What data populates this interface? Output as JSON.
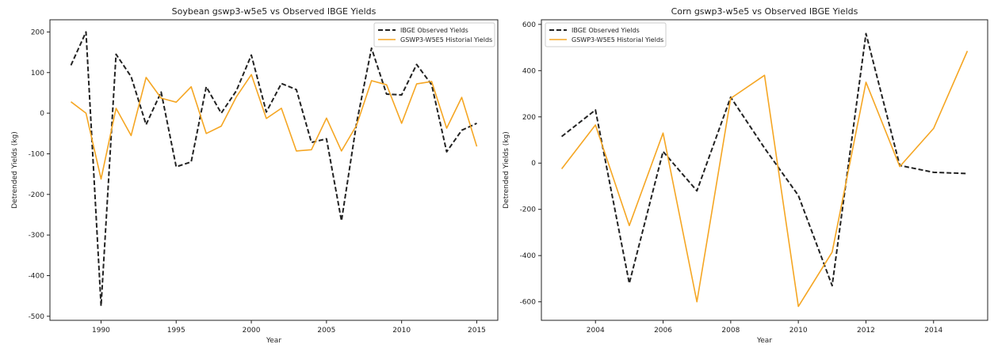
{
  "chart_data": [
    {
      "type": "line",
      "title": "Soybean gswp3-w5e5 vs Observed IBGE Yields",
      "xlabel": "Year",
      "ylabel": "Detrended Yields (kg)",
      "xlim": [
        1986.6,
        2016.4
      ],
      "ylim": [
        -510,
        230
      ],
      "xticks": [
        1990,
        1995,
        2000,
        2005,
        2010,
        2015
      ],
      "yticks": [
        -500,
        -400,
        -300,
        -200,
        -100,
        0,
        100,
        200
      ],
      "grid": false,
      "legend": "top-right",
      "x": [
        1988,
        1989,
        1990,
        1991,
        1992,
        1993,
        1994,
        1995,
        1996,
        1997,
        1998,
        1999,
        2000,
        2001,
        2002,
        2003,
        2004,
        2005,
        2006,
        2007,
        2008,
        2009,
        2010,
        2011,
        2012,
        2013,
        2014,
        2015
      ],
      "series": [
        {
          "name": "IBGE Observed Yields",
          "color": "#222222",
          "dash": true,
          "values": [
            118,
            200,
            -475,
            145,
            90,
            -28,
            52,
            -132,
            -120,
            65,
            0,
            55,
            143,
            3,
            73,
            58,
            -72,
            -63,
            -265,
            -25,
            160,
            47,
            45,
            120,
            70,
            -95,
            -42,
            -25
          ]
        },
        {
          "name": "GSWP3-W5E5 Historial Yields",
          "color": "#f5a623",
          "dash": false,
          "values": [
            28,
            0,
            -162,
            12,
            -55,
            88,
            37,
            27,
            65,
            -50,
            -32,
            40,
            95,
            -13,
            12,
            -93,
            -90,
            -12,
            -93,
            -30,
            80,
            70,
            -25,
            72,
            78,
            -37,
            39,
            -82
          ]
        }
      ]
    },
    {
      "type": "line",
      "title": "Corn gswp3-w5e5 vs Observed IBGE Yields",
      "xlabel": "Year",
      "ylabel": "Detrended Yields (kg)",
      "xlim": [
        2002.4,
        2015.6
      ],
      "ylim": [
        -680,
        620
      ],
      "xticks": [
        2004,
        2006,
        2008,
        2010,
        2012,
        2014
      ],
      "yticks": [
        -600,
        -400,
        -200,
        0,
        200,
        400,
        600
      ],
      "grid": false,
      "legend": "top-left",
      "x": [
        2003,
        2004,
        2005,
        2006,
        2007,
        2008,
        2009,
        2010,
        2011,
        2012,
        2013,
        2014,
        2015
      ],
      "series": [
        {
          "name": "IBGE Observed Yields",
          "color": "#222222",
          "dash": true,
          "values": [
            115,
            230,
            -520,
            50,
            -120,
            285,
            65,
            -140,
            -530,
            560,
            -10,
            -40,
            -45
          ]
        },
        {
          "name": "GSWP3-W5E5 Historial Yields",
          "color": "#f5a623",
          "dash": false,
          "values": [
            -25,
            165,
            -270,
            130,
            -600,
            280,
            380,
            -620,
            -385,
            350,
            -15,
            150,
            485
          ]
        }
      ]
    }
  ]
}
